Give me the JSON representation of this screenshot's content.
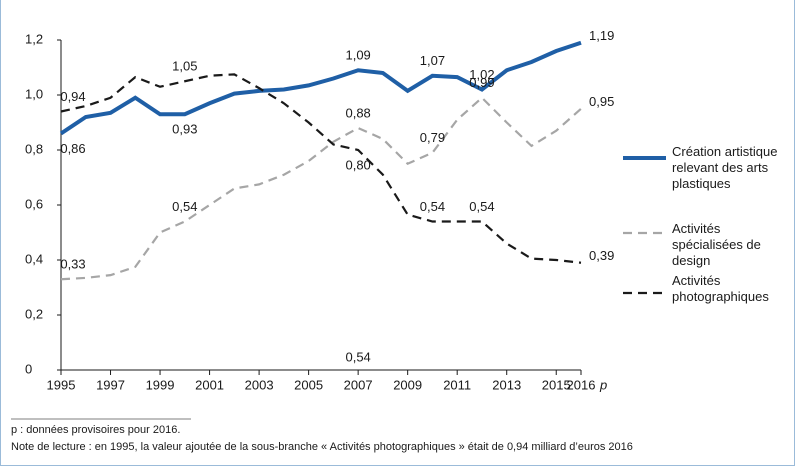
{
  "chart_data": {
    "type": "line",
    "x": [
      1995,
      1996,
      1997,
      1998,
      1999,
      2000,
      2001,
      2002,
      2003,
      2004,
      2005,
      2006,
      2007,
      2008,
      2009,
      2010,
      2011,
      2012,
      2013,
      2014,
      2015,
      2016
    ],
    "series": [
      {
        "name": "Création artistique relevant des arts plastiques",
        "color": "#1f5fa6",
        "dash": false,
        "values": [
          0.86,
          0.92,
          0.935,
          0.99,
          0.93,
          0.93,
          0.97,
          1.005,
          1.015,
          1.02,
          1.035,
          1.06,
          1.09,
          1.08,
          1.015,
          1.07,
          1.065,
          1.02,
          1.09,
          1.12,
          1.16,
          1.19
        ],
        "value_labels": [
          "0,86",
          null,
          null,
          null,
          null,
          "0,93",
          null,
          null,
          null,
          null,
          null,
          null,
          "1,09",
          null,
          null,
          "1,07",
          null,
          "1,02",
          null,
          null,
          null,
          "1,19"
        ]
      },
      {
        "name": "Activités spécialisées de design",
        "color": "#a6a6a6",
        "dash": true,
        "values": [
          0.33,
          0.335,
          0.345,
          0.375,
          0.5,
          0.54,
          0.6,
          0.66,
          0.675,
          0.71,
          0.76,
          0.83,
          0.88,
          0.84,
          0.75,
          0.79,
          0.91,
          0.99,
          0.9,
          0.815,
          0.87,
          0.95
        ],
        "value_labels": [
          "0,33",
          null,
          null,
          null,
          null,
          "0,54",
          null,
          null,
          null,
          null,
          null,
          null,
          "0,88",
          null,
          null,
          "0,79",
          null,
          "0,99",
          null,
          null,
          null,
          "0,95"
        ]
      },
      {
        "name": "Activités photographiques",
        "color": "#1a1a1a",
        "dash": true,
        "values": [
          0.94,
          0.96,
          0.99,
          1.065,
          1.03,
          1.05,
          1.07,
          1.075,
          1.025,
          0.97,
          0.9,
          0.82,
          0.8,
          0.71,
          0.565,
          0.54,
          0.54,
          0.54,
          0.46,
          0.405,
          0.4,
          0.39
        ],
        "value_labels": [
          "0,94",
          null,
          null,
          null,
          null,
          "1,05",
          null,
          null,
          null,
          null,
          null,
          null,
          "0,80",
          null,
          null,
          "0,54",
          null,
          "0,54",
          null,
          null,
          null,
          "0,39"
        ]
      }
    ],
    "xlim": [
      1995,
      2016
    ],
    "xticks": [
      1995,
      1997,
      1999,
      2001,
      2003,
      2005,
      2007,
      2009,
      2011,
      2013,
      2015,
      2016
    ],
    "provisional_marker": "p",
    "ylim": [
      0,
      1.2
    ],
    "yticks": [
      0,
      {
        "value": 0.2,
        "label": "0,2"
      },
      {
        "value": 0.4,
        "label": "0,4"
      },
      {
        "value": 0.6,
        "label": "0,6"
      },
      {
        "value": 0.8,
        "label": "0,8"
      },
      {
        "value": 1.0,
        "label": "1,0"
      },
      {
        "value": 1.2,
        "label": "1,2"
      }
    ],
    "annotation": "0,54",
    "footnote": "p : données provisoires pour 2016.",
    "note": "Note de lecture : en 1995, la valeur ajoutée de la sous-branche « Activités photographiques » était de 0,94 milliard d’euros 2016"
  }
}
